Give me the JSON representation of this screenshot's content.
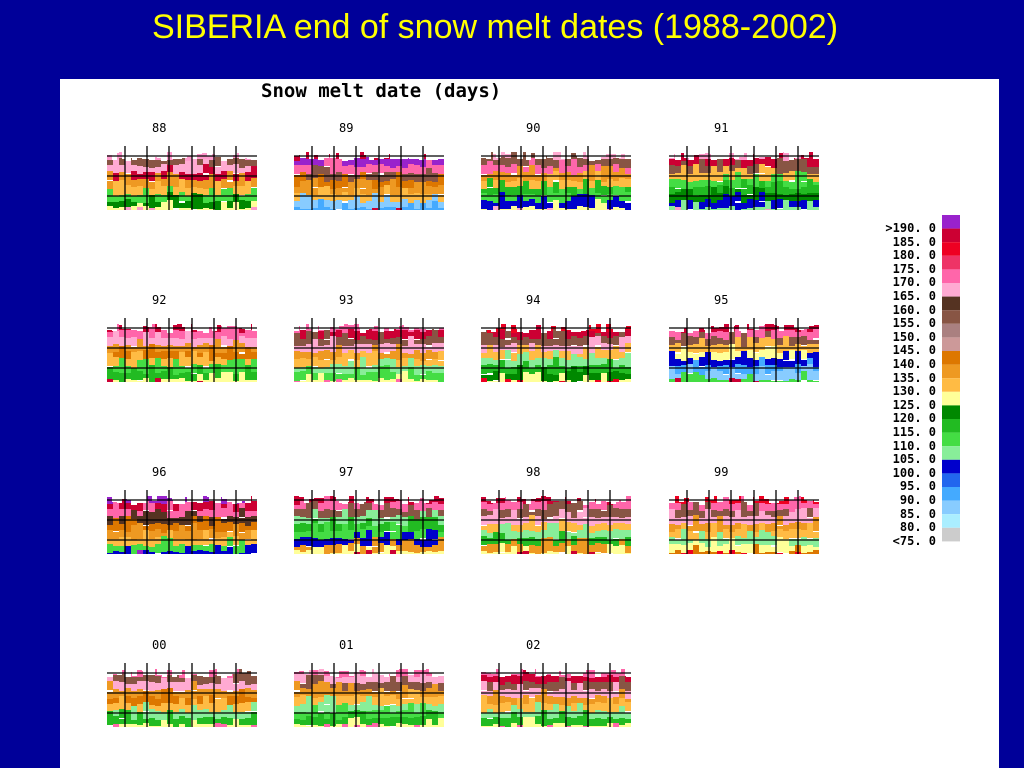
{
  "slide": {
    "title": "SIBERIA end of snow melt dates (1988-2002)"
  },
  "figure": {
    "title": "Snow melt date (days)"
  },
  "maps": [
    {
      "year": "88"
    },
    {
      "year": "89"
    },
    {
      "year": "90"
    },
    {
      "year": "91"
    },
    {
      "year": "92"
    },
    {
      "year": "93"
    },
    {
      "year": "94"
    },
    {
      "year": "95"
    },
    {
      "year": "96"
    },
    {
      "year": "97"
    },
    {
      "year": "98"
    },
    {
      "year": "99"
    },
    {
      "year": "00"
    },
    {
      "year": "01"
    },
    {
      "year": "02"
    }
  ],
  "legend": {
    "labels": [
      ">190. 0",
      "185. 0",
      "180. 0",
      "175. 0",
      "170. 0",
      "165. 0",
      "160. 0",
      "155. 0",
      "150. 0",
      "145. 0",
      "140. 0",
      "135. 0",
      "130. 0",
      "125. 0",
      "120. 0",
      "115. 0",
      "110. 0",
      "105. 0",
      "100. 0",
      "95. 0",
      "90. 0",
      "85. 0",
      "80. 0",
      "<75. 0"
    ],
    "colors": [
      "#9922cc",
      "#cc0033",
      "#ee0022",
      "#ee3366",
      "#ff66aa",
      "#ffaad2",
      "#553322",
      "#885544",
      "#aa8080",
      "#cc9999",
      "#dd7700",
      "#ee9922",
      "#ffbb44",
      "#ffff99",
      "#008800",
      "#22bb22",
      "#44dd44",
      "#88ee99",
      "#0000cc",
      "#2266ee",
      "#44aaff",
      "#88ccff",
      "#aaeeff",
      "#cccccc"
    ]
  }
}
